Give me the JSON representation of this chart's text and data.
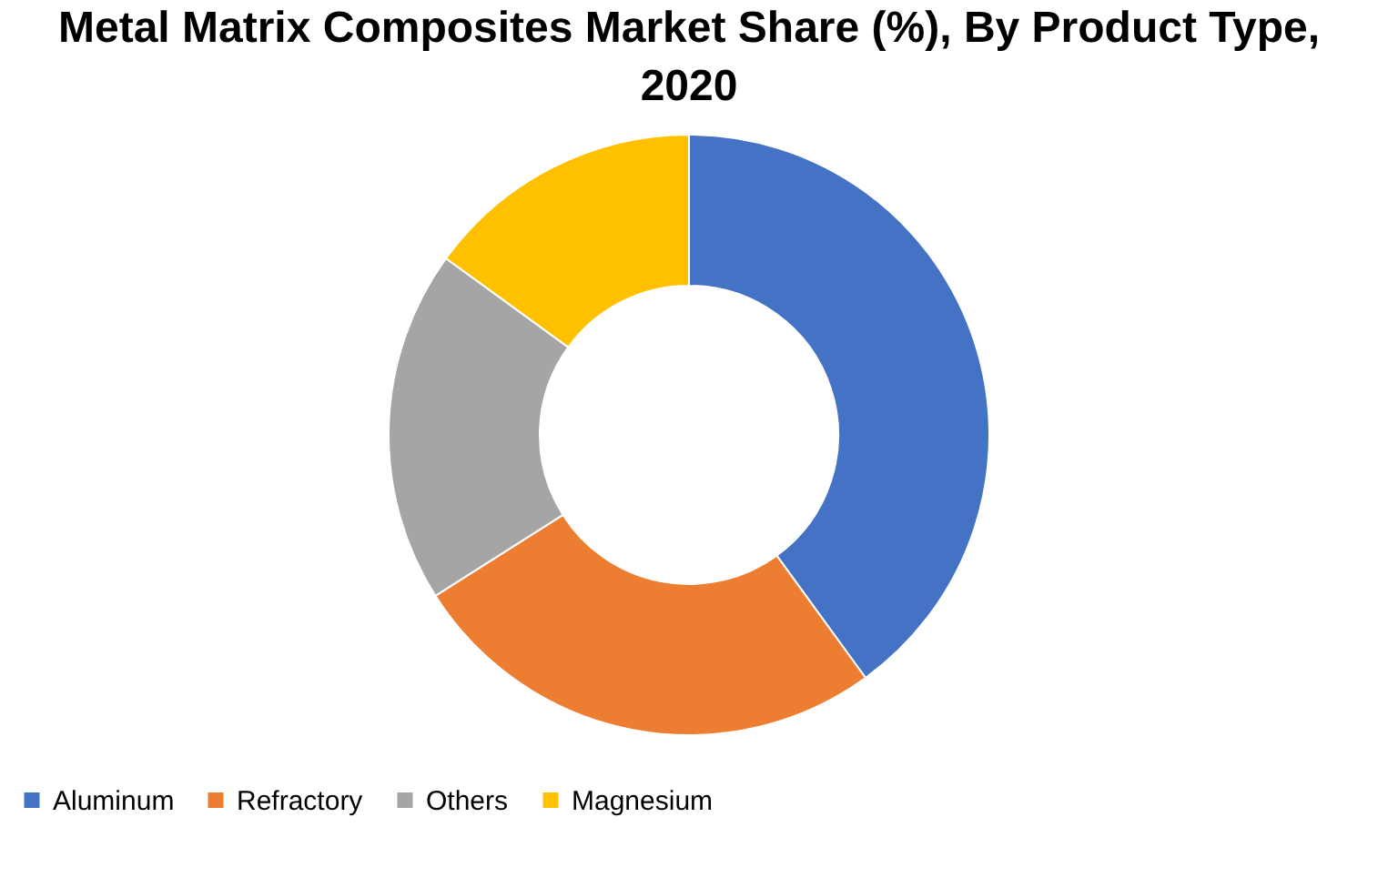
{
  "chart_data": {
    "type": "donut",
    "title": "Metal Matrix Composites Market Share (%), By Product Type, 2020",
    "categories": [
      "Aluminum",
      "Refractory",
      "Others",
      "Magnesium"
    ],
    "values": [
      40,
      26,
      19,
      15
    ],
    "colors": [
      "#4472c4",
      "#ed7d31",
      "#a5a5a5",
      "#ffc000"
    ],
    "legend": "bottom"
  }
}
